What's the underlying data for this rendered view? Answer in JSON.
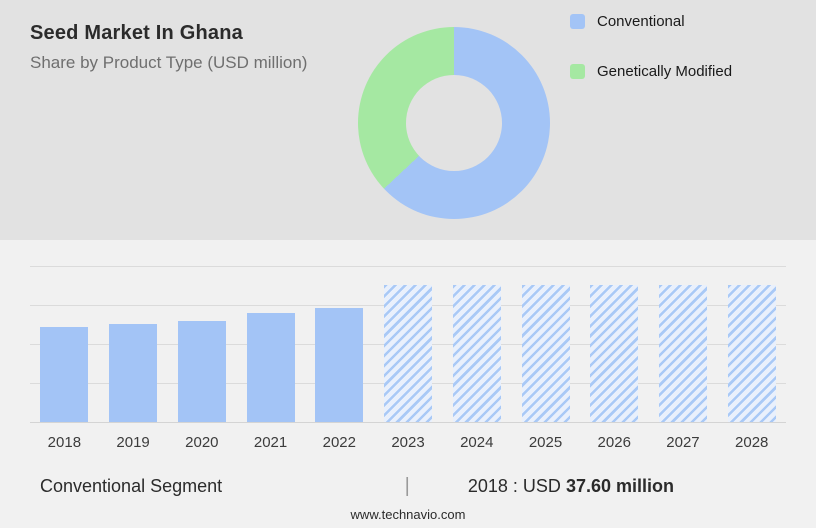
{
  "header": {
    "title": "Seed Market In Ghana",
    "subtitle": "Share by Product Type (USD million)"
  },
  "legend": [
    {
      "label": "Conventional",
      "color": "#a3c4f6"
    },
    {
      "label": "Genetically Modified",
      "color": "#a5e8a2"
    }
  ],
  "chart_data": [
    {
      "type": "pie",
      "title": "Share by Product Type (USD million)",
      "donut": true,
      "legend_position": "right",
      "slices": [
        {
          "label": "Conventional",
          "value": 63,
          "color": "#a3c4f6"
        },
        {
          "label": "Genetically Modified",
          "value": 37,
          "color": "#a5e8a2"
        }
      ]
    },
    {
      "type": "bar",
      "title": "Conventional Segment (USD million)",
      "categories": [
        "2018",
        "2019",
        "2020",
        "2021",
        "2022",
        "2023",
        "2024",
        "2025",
        "2026",
        "2027",
        "2028"
      ],
      "values": [
        37.6,
        38.8,
        39.7,
        42.8,
        45.1,
        54,
        54,
        54,
        54,
        54,
        54
      ],
      "forecast": [
        false,
        false,
        false,
        false,
        false,
        true,
        true,
        true,
        true,
        true,
        true
      ],
      "ylim": [
        0,
        61.5
      ],
      "grid": true,
      "annotation": "2018 : USD 37.60 million"
    }
  ],
  "footer": {
    "segment_label": "Conventional Segment",
    "separator": "|",
    "value_prefix": "2018 : USD",
    "value_bold": "37.60 million"
  },
  "meta": {
    "website": "www.technavio.com"
  }
}
